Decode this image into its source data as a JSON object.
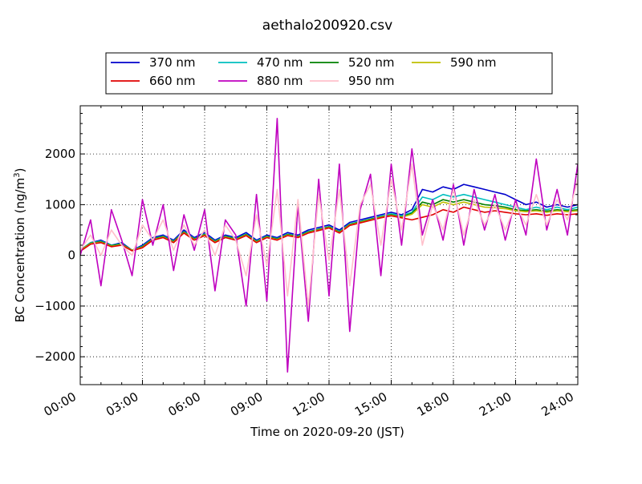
{
  "chart_data": {
    "type": "line",
    "title": "aethalo200920.csv",
    "xlabel": "Time on 2020-09-20 (JST)",
    "ylabel_main": "BC Concentration (ng/m",
    "ylabel_sup": "3",
    "ylabel_tail": ")",
    "xlim": [
      0,
      24
    ],
    "ylim": [
      -2550,
      2950
    ],
    "x_ticks": [
      0,
      3,
      6,
      9,
      12,
      15,
      18,
      21,
      24
    ],
    "x_tick_labels": [
      "00:00",
      "03:00",
      "06:00",
      "09:00",
      "12:00",
      "15:00",
      "18:00",
      "21:00",
      "24:00"
    ],
    "y_ticks": [
      -2000,
      -1000,
      0,
      1000,
      2000
    ],
    "y_tick_labels": [
      "−2000",
      "−1000",
      "0",
      "1000",
      "2000"
    ],
    "grid": true,
    "legend_placement": "top-center",
    "legend_columns": 4,
    "series": [
      {
        "name": "370 nm",
        "color": "#0000cc"
      },
      {
        "name": "470 nm",
        "color": "#00bfbf"
      },
      {
        "name": "520 nm",
        "color": "#008000"
      },
      {
        "name": "590 nm",
        "color": "#bfbf00"
      },
      {
        "name": "660 nm",
        "color": "#e00000"
      },
      {
        "name": "880 nm",
        "color": "#bf00bf"
      },
      {
        "name": "950 nm",
        "color": "#ffc0cb"
      }
    ],
    "series_x": [
      0,
      0.5,
      1,
      1.5,
      2,
      2.5,
      3,
      3.5,
      4,
      4.5,
      5,
      5.5,
      6,
      6.5,
      7,
      7.5,
      8,
      8.5,
      9,
      9.5,
      10,
      10.5,
      11,
      11.5,
      12,
      12.5,
      13,
      13.5,
      14,
      14.5,
      15,
      15.5,
      16,
      16.5,
      17,
      17.5,
      18,
      18.5,
      19,
      19.5,
      20,
      20.5,
      21,
      21.5,
      22,
      22.5,
      23,
      23.5,
      24
    ],
    "series_values": {
      "370 nm": [
        100,
        250,
        300,
        200,
        250,
        100,
        200,
        350,
        400,
        300,
        500,
        350,
        450,
        300,
        400,
        350,
        450,
        300,
        400,
        350,
        450,
        400,
        500,
        550,
        600,
        500,
        650,
        700,
        750,
        800,
        850,
        800,
        900,
        1300,
        1250,
        1350,
        1300,
        1400,
        1350,
        1300,
        1250,
        1200,
        1100,
        1000,
        1050,
        950,
        1000,
        950,
        1000
      ],
      "470 nm": [
        100,
        250,
        280,
        200,
        230,
        100,
        180,
        330,
        380,
        280,
        470,
        330,
        420,
        280,
        380,
        330,
        420,
        280,
        380,
        330,
        420,
        380,
        470,
        520,
        570,
        470,
        620,
        670,
        720,
        770,
        820,
        780,
        850,
        1150,
        1100,
        1200,
        1150,
        1200,
        1150,
        1100,
        1050,
        1000,
        950,
        900,
        950,
        900,
        950,
        900,
        950
      ],
      "520 nm": [
        100,
        240,
        270,
        190,
        220,
        100,
        170,
        320,
        370,
        270,
        460,
        320,
        410,
        270,
        370,
        320,
        410,
        270,
        370,
        320,
        410,
        370,
        460,
        510,
        560,
        460,
        610,
        660,
        710,
        760,
        800,
        760,
        830,
        1050,
        1000,
        1100,
        1050,
        1100,
        1050,
        1000,
        980,
        950,
        900,
        880,
        900,
        870,
        900,
        880,
        900
      ],
      "590 nm": [
        100,
        230,
        260,
        180,
        210,
        100,
        160,
        310,
        360,
        260,
        450,
        310,
        400,
        260,
        360,
        310,
        400,
        260,
        360,
        310,
        400,
        360,
        450,
        500,
        550,
        450,
        600,
        650,
        700,
        750,
        790,
        750,
        810,
        1000,
        950,
        1050,
        1000,
        1050,
        1000,
        950,
        940,
        920,
        880,
        860,
        880,
        850,
        880,
        860,
        880
      ],
      "660 nm": [
        80,
        220,
        250,
        170,
        200,
        90,
        150,
        300,
        350,
        250,
        440,
        300,
        390,
        250,
        350,
        300,
        390,
        250,
        350,
        300,
        390,
        350,
        440,
        490,
        540,
        440,
        590,
        640,
        690,
        740,
        780,
        740,
        700,
        750,
        800,
        900,
        850,
        950,
        900,
        850,
        880,
        850,
        820,
        800,
        820,
        790,
        820,
        800,
        820
      ],
      "880 nm": [
        0,
        700,
        -600,
        900,
        300,
        -400,
        1100,
        200,
        1000,
        -300,
        800,
        100,
        900,
        -700,
        700,
        400,
        -1000,
        1200,
        -900,
        2700,
        -2300,
        1000,
        -1300,
        1500,
        -800,
        1800,
        -1500,
        900,
        1600,
        -400,
        1800,
        200,
        2100,
        400,
        1100,
        300,
        1400,
        200,
        1300,
        500,
        1200,
        300,
        1100,
        400,
        1900,
        500,
        1300,
        400,
        1800
      ],
      "950 nm": [
        100,
        400,
        0,
        500,
        200,
        0,
        600,
        300,
        700,
        100,
        600,
        200,
        500,
        0,
        600,
        300,
        -400,
        800,
        -200,
        1300,
        -800,
        1100,
        -1000,
        1200,
        -100,
        1300,
        -600,
        1000,
        1400,
        200,
        1500,
        500,
        1800,
        200,
        1000,
        500,
        1300,
        400,
        1100,
        600,
        1000,
        500,
        1000,
        600,
        1200,
        600,
        1100,
        700,
        1500
      ]
    }
  }
}
